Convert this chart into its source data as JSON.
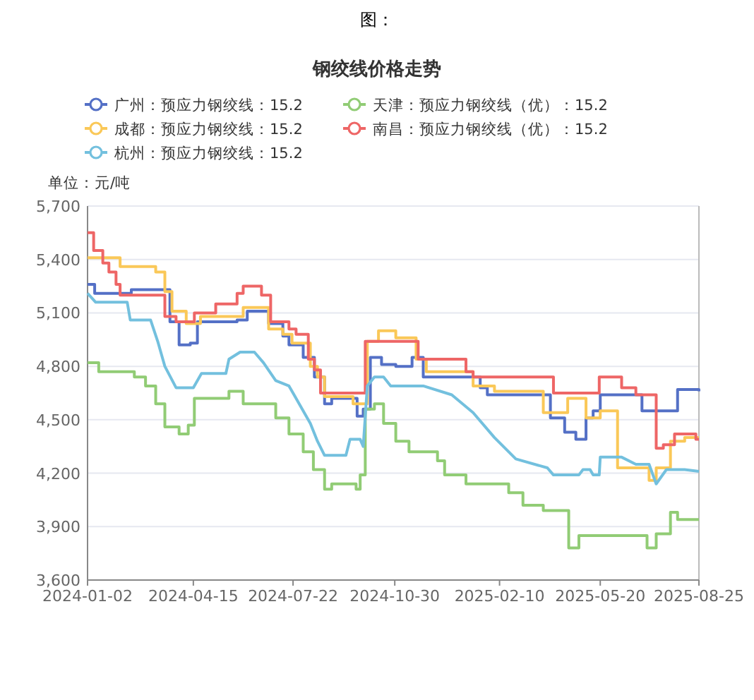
{
  "chart_data": {
    "type": "step",
    "title": "钢绞线价格走势",
    "ylabel": "单位：元/吨",
    "annotations": [
      "图："
    ],
    "xlim": [
      "2024-01-02",
      "2025-08-25"
    ],
    "xticks": [
      {
        "value": "2024-01-02",
        "label": "2024-01-02"
      },
      {
        "value": "2024-04-15",
        "label": "2024-04-15"
      },
      {
        "value": "2024-07-22",
        "label": "2024-07-22"
      },
      {
        "value": "2024-10-30",
        "label": "2024-10-30"
      },
      {
        "value": "2025-02-10",
        "label": "2025-02-10"
      },
      {
        "value": "2025-05-20",
        "label": "2025-05-20"
      },
      {
        "value": "2025-08-25",
        "label": "2025-08-25"
      }
    ],
    "ylim": [
      3600,
      5700
    ],
    "yticks": [
      {
        "value": 3600,
        "label": "3,600"
      },
      {
        "value": 3900,
        "label": "3,900"
      },
      {
        "value": 4200,
        "label": "4,200"
      },
      {
        "value": 4500,
        "label": "4,500"
      },
      {
        "value": 4800,
        "label": "4,800"
      },
      {
        "value": 5100,
        "label": "5,100"
      },
      {
        "value": 5400,
        "label": "5,400"
      },
      {
        "value": 5700,
        "label": "5,700"
      }
    ],
    "grid": "y",
    "legend": "top",
    "series": [
      {
        "name": "广州：预应力钢绞线：15.2",
        "color": "#5470c6",
        "x": [
          "2024-01-02",
          "2024-01-09",
          "2024-02-14",
          "2024-03-23",
          "2024-04-01",
          "2024-04-12",
          "2024-04-19",
          "2024-05-28",
          "2024-06-07",
          "2024-06-28",
          "2024-07-12",
          "2024-07-18",
          "2024-08-01",
          "2024-08-12",
          "2024-08-22",
          "2024-08-29",
          "2024-09-23",
          "2024-09-29",
          "2024-10-06",
          "2024-10-17",
          "2024-10-31",
          "2024-11-16",
          "2024-11-27",
          "2025-01-22",
          "2025-01-29",
          "2025-04-01",
          "2025-04-15",
          "2025-04-26",
          "2025-05-06",
          "2025-05-13",
          "2025-05-20",
          "2025-06-30",
          "2025-08-04",
          "2025-08-25"
        ],
        "values": [
          5260,
          5210,
          5230,
          5050,
          4920,
          4930,
          5050,
          5060,
          5110,
          5040,
          4970,
          4920,
          4850,
          4740,
          4590,
          4620,
          4520,
          4560,
          4850,
          4810,
          4800,
          4850,
          4740,
          4680,
          4640,
          4510,
          4430,
          4390,
          4510,
          4550,
          4640,
          4550,
          4670,
          4660
        ]
      },
      {
        "name": "天津：预应力钢绞线（优）：15.2",
        "color": "#91cc75",
        "x": [
          "2024-01-02",
          "2024-01-13",
          "2024-02-17",
          "2024-02-28",
          "2024-03-09",
          "2024-03-18",
          "2024-04-01",
          "2024-04-10",
          "2024-04-16",
          "2024-05-20",
          "2024-06-03",
          "2024-07-05",
          "2024-07-18",
          "2024-08-01",
          "2024-08-11",
          "2024-08-22",
          "2024-08-29",
          "2024-09-22",
          "2024-09-26",
          "2024-10-01",
          "2024-10-10",
          "2024-10-19",
          "2024-10-31",
          "2024-11-13",
          "2024-12-11",
          "2024-12-18",
          "2025-01-08",
          "2025-02-19",
          "2025-03-05",
          "2025-03-25",
          "2025-04-19",
          "2025-04-29",
          "2025-07-05",
          "2025-07-14",
          "2025-07-28",
          "2025-08-04",
          "2025-08-25"
        ],
        "values": [
          4820,
          4770,
          4740,
          4690,
          4590,
          4460,
          4420,
          4470,
          4620,
          4660,
          4590,
          4510,
          4420,
          4320,
          4220,
          4110,
          4140,
          4110,
          4190,
          4560,
          4590,
          4480,
          4380,
          4320,
          4270,
          4190,
          4140,
          4090,
          4020,
          3990,
          3780,
          3850,
          3780,
          3860,
          3980,
          3940,
          3940
        ]
      },
      {
        "name": "成都：预应力钢绞线：15.2",
        "color": "#fac858",
        "x": [
          "2024-01-02",
          "2024-02-03",
          "2024-03-09",
          "2024-03-18",
          "2024-03-25",
          "2024-04-08",
          "2024-04-22",
          "2024-06-03",
          "2024-06-28",
          "2024-07-12",
          "2024-07-21",
          "2024-08-08",
          "2024-08-15",
          "2024-08-22",
          "2024-09-19",
          "2024-10-03",
          "2024-10-14",
          "2024-10-31",
          "2024-11-20",
          "2024-11-30",
          "2025-01-15",
          "2025-02-05",
          "2025-03-25",
          "2025-04-18",
          "2025-05-06",
          "2025-05-20",
          "2025-06-06",
          "2025-07-07",
          "2025-07-14",
          "2025-07-28",
          "2025-08-11",
          "2025-08-25"
        ],
        "values": [
          5410,
          5360,
          5330,
          5220,
          5110,
          5040,
          5080,
          5130,
          5010,
          4980,
          4930,
          4800,
          4740,
          4630,
          4590,
          4940,
          5000,
          4960,
          4840,
          4770,
          4690,
          4660,
          4540,
          4620,
          4510,
          4550,
          4230,
          4160,
          4230,
          4380,
          4400,
          4400
        ]
      },
      {
        "name": "南昌：预应力钢绞线（优）：15.2",
        "color": "#ee6666",
        "x": [
          "2024-01-02",
          "2024-01-08",
          "2024-01-17",
          "2024-01-23",
          "2024-01-30",
          "2024-02-03",
          "2024-03-18",
          "2024-03-29",
          "2024-04-16",
          "2024-05-07",
          "2024-05-28",
          "2024-06-03",
          "2024-06-21",
          "2024-06-30",
          "2024-07-18",
          "2024-07-25",
          "2024-08-06",
          "2024-08-12",
          "2024-08-18",
          "2024-10-01",
          "2024-11-22",
          "2025-01-08",
          "2025-01-15",
          "2025-04-04",
          "2025-05-19",
          "2025-06-10",
          "2025-06-24",
          "2025-07-14",
          "2025-07-21",
          "2025-08-01",
          "2025-08-22",
          "2025-08-25"
        ],
        "values": [
          5550,
          5450,
          5380,
          5330,
          5260,
          5200,
          5080,
          5050,
          5100,
          5150,
          5210,
          5250,
          5200,
          5050,
          5010,
          4980,
          4840,
          4780,
          4650,
          4940,
          4840,
          4770,
          4740,
          4650,
          4740,
          4680,
          4640,
          4340,
          4360,
          4420,
          4390,
          4390
        ]
      },
      {
        "name": "杭州：预应力钢绞线：15.2",
        "color": "#73c0de",
        "type": "line",
        "x": [
          "2024-01-02",
          "2024-01-10",
          "2024-02-10",
          "2024-02-13",
          "2024-03-04",
          "2024-03-11",
          "2024-03-18",
          "2024-03-29",
          "2024-04-15",
          "2024-04-23",
          "2024-05-17",
          "2024-05-20",
          "2024-05-31",
          "2024-06-14",
          "2024-06-23",
          "2024-07-05",
          "2024-07-18",
          "2024-07-23",
          "2024-08-08",
          "2024-08-15",
          "2024-08-22",
          "2024-09-12",
          "2024-09-16",
          "2024-09-26",
          "2024-09-29",
          "2024-10-03",
          "2024-10-10",
          "2024-10-19",
          "2024-10-26",
          "2024-11-27",
          "2024-12-25",
          "2025-01-15",
          "2025-02-05",
          "2025-02-26",
          "2025-03-29",
          "2025-04-04",
          "2025-04-29",
          "2025-05-03",
          "2025-05-10",
          "2025-05-13",
          "2025-05-19",
          "2025-05-20",
          "2025-06-10",
          "2025-06-24",
          "2025-07-07",
          "2025-07-14",
          "2025-07-24",
          "2025-08-11",
          "2025-08-25"
        ],
        "values": [
          5210,
          5160,
          5160,
          5060,
          5060,
          4940,
          4800,
          4680,
          4680,
          4760,
          4760,
          4840,
          4880,
          4880,
          4820,
          4720,
          4690,
          4640,
          4480,
          4380,
          4300,
          4300,
          4390,
          4390,
          4350,
          4690,
          4740,
          4740,
          4690,
          4690,
          4640,
          4540,
          4400,
          4280,
          4230,
          4190,
          4190,
          4220,
          4220,
          4190,
          4190,
          4290,
          4290,
          4250,
          4250,
          4140,
          4220,
          4220,
          4210
        ]
      }
    ]
  }
}
